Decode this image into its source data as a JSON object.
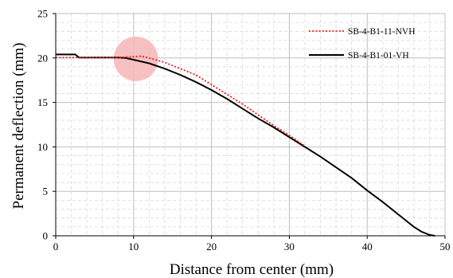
{
  "chart_data": {
    "type": "line",
    "xlabel": "Distance from center (mm)",
    "ylabel": "Permanent deflection (mm)",
    "xlim": [
      0,
      50
    ],
    "ylim": [
      0,
      25
    ],
    "xticks": [
      0,
      10,
      20,
      30,
      40,
      50
    ],
    "yticks": [
      0,
      5,
      10,
      15,
      20,
      25
    ],
    "x_minor_step": 2,
    "y_minor_step": 1,
    "grid": true,
    "legend_position": "top-right",
    "series": [
      {
        "name": "SB-4-B1-11-NVH",
        "color": "#e8201e",
        "style": "dotted",
        "points": [
          [
            0,
            20.05
          ],
          [
            3,
            20.05
          ],
          [
            6,
            20.05
          ],
          [
            8,
            20.05
          ],
          [
            10,
            20.15
          ],
          [
            11,
            20.2
          ],
          [
            12,
            20.0
          ],
          [
            14,
            19.5
          ],
          [
            16,
            18.8
          ],
          [
            18,
            18.1
          ],
          [
            20,
            17.0
          ],
          [
            22,
            15.9
          ],
          [
            24,
            14.8
          ],
          [
            26,
            13.6
          ],
          [
            28,
            12.4
          ],
          [
            30,
            11.3
          ],
          [
            32,
            10.1
          ]
        ]
      },
      {
        "name": "SB-4-B1-01-VH",
        "color": "#000000",
        "style": "solid",
        "points": [
          [
            0,
            20.4
          ],
          [
            2.5,
            20.4
          ],
          [
            3,
            20.05
          ],
          [
            6,
            20.05
          ],
          [
            8,
            20.05
          ],
          [
            9,
            20.0
          ],
          [
            10,
            19.8
          ],
          [
            12,
            19.4
          ],
          [
            14,
            18.8
          ],
          [
            16,
            18.1
          ],
          [
            18,
            17.3
          ],
          [
            20,
            16.4
          ],
          [
            22,
            15.4
          ],
          [
            24,
            14.3
          ],
          [
            26,
            13.2
          ],
          [
            28,
            12.2
          ],
          [
            30,
            11.1
          ],
          [
            32,
            10.0
          ],
          [
            34,
            8.9
          ],
          [
            36,
            7.7
          ],
          [
            38,
            6.5
          ],
          [
            40,
            5.1
          ],
          [
            42,
            3.8
          ],
          [
            44,
            2.4
          ],
          [
            46,
            1.0
          ],
          [
            47,
            0.45
          ],
          [
            48,
            0.1
          ],
          [
            48.7,
            0.0
          ]
        ]
      }
    ],
    "highlight_circle": {
      "x": 10.3,
      "y": 19.9,
      "color": "#f7b6b6"
    }
  }
}
